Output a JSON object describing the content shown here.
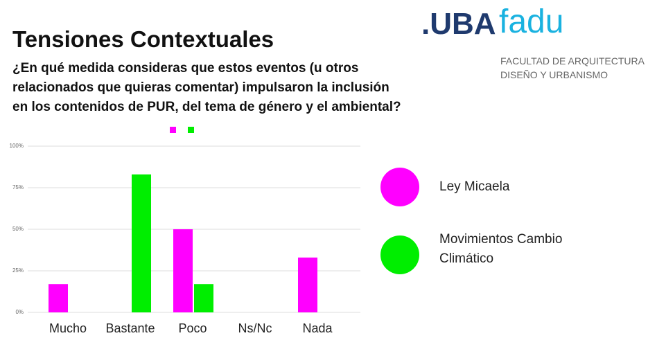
{
  "logo": {
    "uba": ".UBA",
    "fadu": "fadu",
    "line1": "FACULTAD DE ARQUITECTURA",
    "line2": "DISEÑO Y URBANISMO"
  },
  "chart_data": {
    "type": "bar",
    "title": "Tensiones Contextuales",
    "subtitle": [
      "¿En qué medida consideras que estos eventos (u otros",
      "relacionados que quieras comentar) impulsaron la inclusión",
      "en los contenidos de PUR, del tema de género y el ambiental?"
    ],
    "categories": [
      "Mucho",
      "Bastante",
      "Poco",
      "Ns/Nc",
      "Nada"
    ],
    "series": [
      {
        "name": "Ley Micaela",
        "color": "#ff00ff",
        "values": [
          17,
          0,
          50,
          0,
          33
        ]
      },
      {
        "name": "Movimientos Cambio Climático",
        "color": "#00ee00",
        "values": [
          0,
          83,
          17,
          0,
          0
        ]
      }
    ],
    "ylim": [
      0,
      100
    ],
    "yticks": [
      {
        "value": 0,
        "label": "0%"
      },
      {
        "value": 25,
        "label": "25%"
      },
      {
        "value": 50,
        "label": "50%"
      },
      {
        "value": 75,
        "label": "75%"
      },
      {
        "value": 100,
        "label": "100%"
      }
    ],
    "grid": true,
    "legend": "right"
  }
}
